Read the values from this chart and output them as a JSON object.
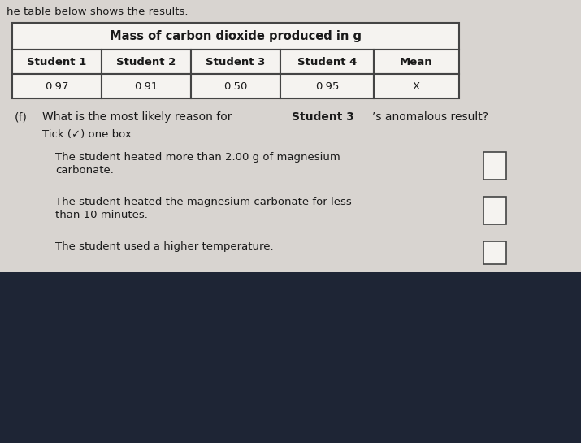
{
  "top_text": "he table below shows the results.",
  "table_title": "Mass of carbon dioxide produced in g",
  "col_headers": [
    "Student 1",
    "Student 2",
    "Student 3",
    "Student 4",
    "Mean"
  ],
  "col_values": [
    "0.97",
    "0.91",
    "0.50",
    "0.95",
    "X"
  ],
  "question_label": "(f)",
  "question_prefix": "What is the most likely reason for ",
  "question_bold": "Student 3",
  "question_suffix": "’s anomalous result?",
  "tick_text": "Tick (✓) one box.",
  "option1_line1": "The student heated more than 2.00 g of magnesium",
  "option1_line2": "carbonate.",
  "option2_line1": "The student heated the magnesium carbonate for less",
  "option2_line2": "than 10 minutes.",
  "option3_line1": "The student used a higher temperature.",
  "bg_color": "#d8d4d0",
  "table_bg": "#f5f3f0",
  "text_color": "#1a1a1a",
  "border_color": "#444444",
  "bottom_bg": "#1e2535"
}
